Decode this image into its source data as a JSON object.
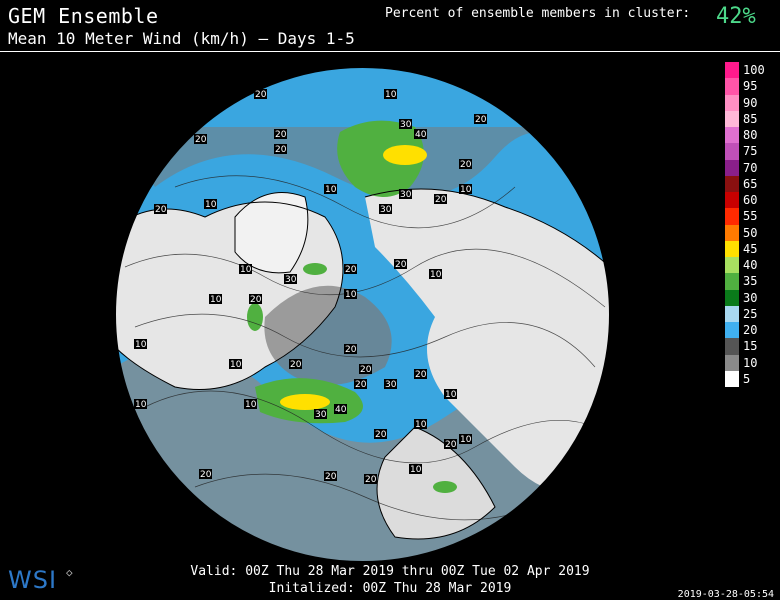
{
  "header": {
    "title": "GEM Ensemble",
    "subtitle": "Mean 10 Meter Wind (km/h) — Days 1-5",
    "cluster_label": "Percent of ensemble members in cluster:",
    "cluster_value": "42%"
  },
  "legend": [
    {
      "label": "100",
      "color": "#ff1a8c"
    },
    {
      "label": "95",
      "color": "#ff55a8"
    },
    {
      "label": "90",
      "color": "#ff8fc4"
    },
    {
      "label": "85",
      "color": "#ffb8d8"
    },
    {
      "label": "80",
      "color": "#e070d0"
    },
    {
      "label": "75",
      "color": "#c050b8"
    },
    {
      "label": "70",
      "color": "#8a1f8a"
    },
    {
      "label": "65",
      "color": "#8a1010"
    },
    {
      "label": "60",
      "color": "#c80000"
    },
    {
      "label": "55",
      "color": "#ff2a00"
    },
    {
      "label": "50",
      "color": "#ff7a00"
    },
    {
      "label": "45",
      "color": "#ffe000"
    },
    {
      "label": "40",
      "color": "#a8e060"
    },
    {
      "label": "35",
      "color": "#50b040"
    },
    {
      "label": "30",
      "color": "#0a7a1a"
    },
    {
      "label": "25",
      "color": "#a8d8f0"
    },
    {
      "label": "20",
      "color": "#40b0f0"
    },
    {
      "label": "15",
      "color": "#555555"
    },
    {
      "label": "10",
      "color": "#8a8a8a"
    },
    {
      "label": "5",
      "color": "#ffffff"
    }
  ],
  "contour_labels": [
    "10",
    "20",
    "30",
    "40"
  ],
  "footer": {
    "valid": "Valid: 00Z Thu 28 Mar 2019 thru 00Z Tue 02 Apr 2019",
    "initialized": "Initalized: 00Z Thu 28 Mar 2019",
    "logo": "WSI",
    "timestamp": "2019-03-28-05:54"
  }
}
